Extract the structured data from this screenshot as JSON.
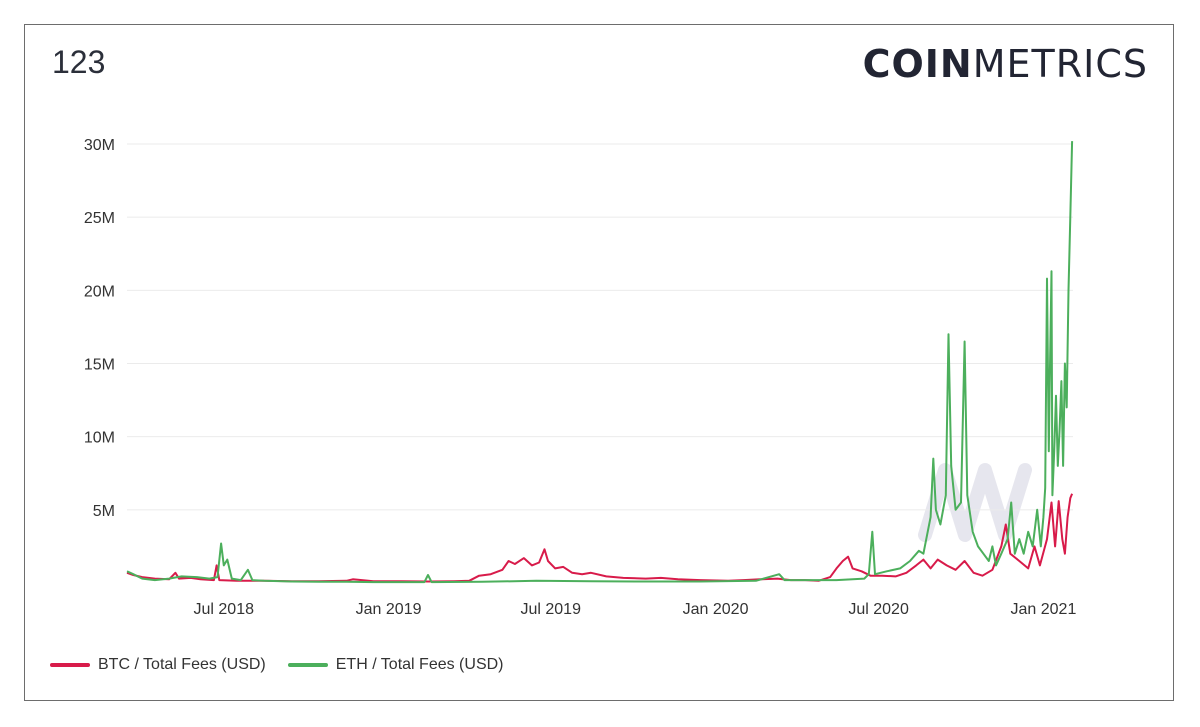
{
  "header": {
    "chart_id": "123"
  },
  "brand": {
    "bold": "COIN",
    "light": "METRICS"
  },
  "colors": {
    "btc": "#d81b4a",
    "eth": "#4caf5c",
    "grid": "#ebebeb",
    "axis_text": "#333333",
    "watermark": "#e6e6ee"
  },
  "legend": [
    {
      "label": "BTC / Total Fees (USD)",
      "color": "#d81b4a"
    },
    {
      "label": "ETH / Total Fees (USD)",
      "color": "#4caf5c"
    }
  ],
  "chart_data": {
    "type": "line",
    "x_type": "date",
    "xlim": [
      "2018-03-15",
      "2021-02-03"
    ],
    "ylim": [
      0,
      30000000
    ],
    "y_ticks": [
      {
        "value": 5000000,
        "label": "5M"
      },
      {
        "value": 10000000,
        "label": "10M"
      },
      {
        "value": 15000000,
        "label": "15M"
      },
      {
        "value": 20000000,
        "label": "20M"
      },
      {
        "value": 25000000,
        "label": "25M"
      },
      {
        "value": 30000000,
        "label": "30M"
      }
    ],
    "x_ticks": [
      {
        "date": "2018-07-01",
        "label": "Jul 2018"
      },
      {
        "date": "2019-01-01",
        "label": "Jan 2019"
      },
      {
        "date": "2019-07-01",
        "label": "Jul 2019"
      },
      {
        "date": "2020-01-01",
        "label": "Jan 2020"
      },
      {
        "date": "2020-07-01",
        "label": "Jul 2020"
      },
      {
        "date": "2021-01-01",
        "label": "Jan 2021"
      }
    ],
    "grid": true,
    "legend_position": "bottom-left",
    "series": [
      {
        "name": "BTC / Total Fees (USD)",
        "color": "#d81b4a",
        "points": [
          [
            "2018-03-15",
            700000
          ],
          [
            "2018-03-22",
            550000
          ],
          [
            "2018-04-01",
            400000
          ],
          [
            "2018-04-15",
            300000
          ],
          [
            "2018-05-01",
            250000
          ],
          [
            "2018-05-08",
            700000
          ],
          [
            "2018-05-12",
            300000
          ],
          [
            "2018-05-25",
            350000
          ],
          [
            "2018-06-05",
            250000
          ],
          [
            "2018-06-20",
            200000
          ],
          [
            "2018-06-23",
            1200000
          ],
          [
            "2018-06-26",
            200000
          ],
          [
            "2018-07-15",
            150000
          ],
          [
            "2018-08-15",
            150000
          ],
          [
            "2018-09-15",
            120000
          ],
          [
            "2018-10-15",
            120000
          ],
          [
            "2018-11-15",
            150000
          ],
          [
            "2018-11-22",
            250000
          ],
          [
            "2018-12-15",
            120000
          ],
          [
            "2019-01-15",
            120000
          ],
          [
            "2019-02-15",
            100000
          ],
          [
            "2019-03-15",
            120000
          ],
          [
            "2019-04-01",
            150000
          ],
          [
            "2019-04-12",
            500000
          ],
          [
            "2019-04-25",
            600000
          ],
          [
            "2019-05-08",
            900000
          ],
          [
            "2019-05-15",
            1500000
          ],
          [
            "2019-05-22",
            1300000
          ],
          [
            "2019-06-01",
            1700000
          ],
          [
            "2019-06-10",
            1200000
          ],
          [
            "2019-06-18",
            1400000
          ],
          [
            "2019-06-24",
            2300000
          ],
          [
            "2019-06-28",
            1500000
          ],
          [
            "2019-07-06",
            1000000
          ],
          [
            "2019-07-15",
            1100000
          ],
          [
            "2019-07-25",
            700000
          ],
          [
            "2019-08-05",
            600000
          ],
          [
            "2019-08-15",
            700000
          ],
          [
            "2019-09-01",
            450000
          ],
          [
            "2019-09-20",
            350000
          ],
          [
            "2019-10-15",
            300000
          ],
          [
            "2019-11-01",
            350000
          ],
          [
            "2019-11-20",
            250000
          ],
          [
            "2019-12-15",
            200000
          ],
          [
            "2020-01-15",
            150000
          ],
          [
            "2020-02-01",
            200000
          ],
          [
            "2020-02-20",
            250000
          ],
          [
            "2020-03-10",
            300000
          ],
          [
            "2020-03-25",
            200000
          ],
          [
            "2020-04-10",
            200000
          ],
          [
            "2020-04-25",
            150000
          ],
          [
            "2020-05-08",
            400000
          ],
          [
            "2020-05-15",
            1000000
          ],
          [
            "2020-05-22",
            1500000
          ],
          [
            "2020-05-28",
            1800000
          ],
          [
            "2020-06-02",
            1000000
          ],
          [
            "2020-06-12",
            800000
          ],
          [
            "2020-06-22",
            500000
          ],
          [
            "2020-07-05",
            500000
          ],
          [
            "2020-07-20",
            450000
          ],
          [
            "2020-08-01",
            700000
          ],
          [
            "2020-08-12",
            1200000
          ],
          [
            "2020-08-20",
            1600000
          ],
          [
            "2020-08-28",
            1000000
          ],
          [
            "2020-09-05",
            1600000
          ],
          [
            "2020-09-15",
            1200000
          ],
          [
            "2020-09-25",
            900000
          ],
          [
            "2020-10-05",
            1500000
          ],
          [
            "2020-10-15",
            700000
          ],
          [
            "2020-10-25",
            500000
          ],
          [
            "2020-11-05",
            900000
          ],
          [
            "2020-11-15",
            2500000
          ],
          [
            "2020-11-20",
            4000000
          ],
          [
            "2020-11-25",
            2000000
          ],
          [
            "2020-12-05",
            1500000
          ],
          [
            "2020-12-15",
            1000000
          ],
          [
            "2020-12-22",
            2500000
          ],
          [
            "2020-12-28",
            1200000
          ],
          [
            "2021-01-05",
            3000000
          ],
          [
            "2021-01-10",
            5500000
          ],
          [
            "2021-01-14",
            2500000
          ],
          [
            "2021-01-18",
            5600000
          ],
          [
            "2021-01-22",
            3000000
          ],
          [
            "2021-01-25",
            2000000
          ],
          [
            "2021-01-28",
            4500000
          ],
          [
            "2021-01-31",
            5800000
          ],
          [
            "2021-02-02",
            6100000
          ]
        ]
      },
      {
        "name": "ETH / Total Fees (USD)",
        "color": "#4caf5c",
        "points": [
          [
            "2018-03-15",
            800000
          ],
          [
            "2018-03-22",
            600000
          ],
          [
            "2018-04-01",
            300000
          ],
          [
            "2018-04-15",
            200000
          ],
          [
            "2018-05-01",
            300000
          ],
          [
            "2018-05-15",
            450000
          ],
          [
            "2018-06-01",
            400000
          ],
          [
            "2018-06-15",
            300000
          ],
          [
            "2018-06-24",
            400000
          ],
          [
            "2018-06-28",
            2700000
          ],
          [
            "2018-07-01",
            1200000
          ],
          [
            "2018-07-05",
            1600000
          ],
          [
            "2018-07-10",
            300000
          ],
          [
            "2018-07-20",
            200000
          ],
          [
            "2018-07-28",
            900000
          ],
          [
            "2018-08-02",
            200000
          ],
          [
            "2018-08-15",
            150000
          ],
          [
            "2018-09-15",
            100000
          ],
          [
            "2018-10-15",
            80000
          ],
          [
            "2018-11-15",
            80000
          ],
          [
            "2018-12-15",
            60000
          ],
          [
            "2019-01-15",
            60000
          ],
          [
            "2019-02-10",
            60000
          ],
          [
            "2019-02-14",
            550000
          ],
          [
            "2019-02-18",
            60000
          ],
          [
            "2019-04-15",
            80000
          ],
          [
            "2019-06-15",
            150000
          ],
          [
            "2019-08-15",
            120000
          ],
          [
            "2019-10-15",
            100000
          ],
          [
            "2019-12-15",
            100000
          ],
          [
            "2020-02-15",
            150000
          ],
          [
            "2020-03-12",
            600000
          ],
          [
            "2020-03-18",
            200000
          ],
          [
            "2020-04-15",
            200000
          ],
          [
            "2020-05-15",
            200000
          ],
          [
            "2020-06-15",
            300000
          ],
          [
            "2020-06-20",
            600000
          ],
          [
            "2020-06-24",
            3500000
          ],
          [
            "2020-06-27",
            600000
          ],
          [
            "2020-07-10",
            800000
          ],
          [
            "2020-07-25",
            1000000
          ],
          [
            "2020-08-05",
            1500000
          ],
          [
            "2020-08-15",
            2200000
          ],
          [
            "2020-08-20",
            2000000
          ],
          [
            "2020-08-28",
            4500000
          ],
          [
            "2020-08-31",
            8500000
          ],
          [
            "2020-09-03",
            5000000
          ],
          [
            "2020-09-08",
            4000000
          ],
          [
            "2020-09-14",
            6000000
          ],
          [
            "2020-09-17",
            17000000
          ],
          [
            "2020-09-20",
            8000000
          ],
          [
            "2020-09-25",
            5000000
          ],
          [
            "2020-10-01",
            5500000
          ],
          [
            "2020-10-05",
            16500000
          ],
          [
            "2020-10-08",
            6000000
          ],
          [
            "2020-10-14",
            3500000
          ],
          [
            "2020-10-20",
            2500000
          ],
          [
            "2020-10-26",
            2000000
          ],
          [
            "2020-11-01",
            1500000
          ],
          [
            "2020-11-05",
            2500000
          ],
          [
            "2020-11-09",
            1200000
          ],
          [
            "2020-11-15",
            2000000
          ],
          [
            "2020-11-22",
            3000000
          ],
          [
            "2020-11-26",
            5500000
          ],
          [
            "2020-11-30",
            2000000
          ],
          [
            "2020-12-05",
            3000000
          ],
          [
            "2020-12-10",
            2000000
          ],
          [
            "2020-12-15",
            3500000
          ],
          [
            "2020-12-20",
            2500000
          ],
          [
            "2020-12-25",
            5000000
          ],
          [
            "2020-12-29",
            2500000
          ],
          [
            "2021-01-01",
            4500000
          ],
          [
            "2021-01-03",
            6500000
          ],
          [
            "2021-01-05",
            20800000
          ],
          [
            "2021-01-07",
            9000000
          ],
          [
            "2021-01-08",
            13500000
          ],
          [
            "2021-01-10",
            21300000
          ],
          [
            "2021-01-11",
            6000000
          ],
          [
            "2021-01-13",
            9000000
          ],
          [
            "2021-01-15",
            12800000
          ],
          [
            "2021-01-17",
            8000000
          ],
          [
            "2021-01-19",
            10500000
          ],
          [
            "2021-01-21",
            13800000
          ],
          [
            "2021-01-23",
            8000000
          ],
          [
            "2021-01-25",
            15000000
          ],
          [
            "2021-01-27",
            12000000
          ],
          [
            "2021-01-29",
            20000000
          ],
          [
            "2021-01-31",
            25000000
          ],
          [
            "2021-02-02",
            30200000
          ]
        ]
      }
    ]
  }
}
